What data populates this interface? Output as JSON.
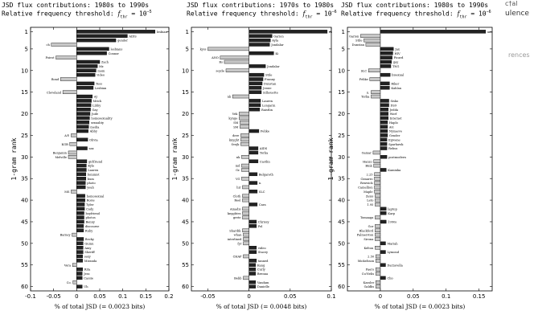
{
  "overlay": {
    "corner_text_1": "c†al",
    "corner_text_2": "ulence",
    "corner_text_3": "rences"
  },
  "chart_data": [
    {
      "type": "bar",
      "orientation": "horizontal",
      "title": "JSD flux contributions: 1980s to 1990s",
      "subtitle": "Relative frequency threshold: f_thr = 10^-5",
      "xlabel": "% of total JSD (= 0.0023 bits)",
      "ylabel": "1-gram rank",
      "xlim": [
        -0.1,
        0.2
      ],
      "ylim": [
        1,
        60
      ],
      "xticks": [
        "-0.1",
        "-0.05",
        "0",
        "0.05",
        "0.1",
        "0.15",
        "0.2"
      ],
      "xtick_values": [
        -0.1,
        -0.05,
        0,
        0.05,
        0.1,
        0.15,
        0.2
      ],
      "yticks": [
        "1",
        "5",
        "10",
        "15",
        "20",
        "25",
        "30",
        "35",
        "40",
        "45",
        "50",
        "55",
        "60"
      ],
      "bars": [
        {
          "rank": 1,
          "label": "lesbian",
          "value": 0.17
        },
        {
          "rank": 2,
          "label": "AIDS",
          "value": 0.11
        },
        {
          "rank": 3,
          "label": "gender",
          "value": 0.085
        },
        {
          "rank": 4,
          "label": "ch",
          "value": -0.055
        },
        {
          "rank": 5,
          "label": "lesbians",
          "value": 0.07
        },
        {
          "rank": 6,
          "label": "Connor",
          "value": 0.065
        },
        {
          "rank": 7,
          "label": "Poirot",
          "value": -0.045
        },
        {
          "rank": 8,
          "label": "Zach",
          "value": 0.05
        },
        {
          "rank": 9,
          "label": "Mr.",
          "value": 0.045
        },
        {
          "rank": 10,
          "label": "mom",
          "value": 0.042
        },
        {
          "rank": 11,
          "label": "video",
          "value": 0.04
        },
        {
          "rank": 12,
          "label": "Bond",
          "value": -0.035
        },
        {
          "rank": 13,
          "label": "Tess",
          "value": 0.038
        },
        {
          "rank": 14,
          "label": "Lesbian",
          "value": 0.036
        },
        {
          "rank": 15,
          "label": "Cleveland",
          "value": -0.03
        },
        {
          "rank": 16,
          "label": "AJ",
          "value": 0.034
        },
        {
          "rank": 17,
          "label": "Mitch",
          "value": 0.032
        },
        {
          "rank": 18,
          "label": "Libby",
          "value": 0.031
        },
        {
          "rank": 19,
          "label": "Gay",
          "value": 0.03
        },
        {
          "rank": 20,
          "label": "Jude",
          "value": 0.029
        },
        {
          "rank": 21,
          "label": "homosexuality",
          "value": 0.028
        },
        {
          "rank": 22,
          "label": "sexuality",
          "value": 0.027
        },
        {
          "rank": 23,
          "label": "media",
          "value": 0.026
        },
        {
          "rank": 24,
          "label": "Abby",
          "value": 0.025
        },
        {
          "rank": 25,
          "label": "A®",
          "value": -0.012
        },
        {
          "rank": 26,
          "label": "Olivia",
          "value": 0.024
        },
        {
          "rank": 27,
          "label": "KGB",
          "value": -0.015
        },
        {
          "rank": 28,
          "label": "sax",
          "value": 0.023
        },
        {
          "rank": 29,
          "label": "Benjamin",
          "value": -0.018
        },
        {
          "rank": 30,
          "label": "Melville",
          "value": -0.018
        },
        {
          "rank": 31,
          "label": "girlfriend",
          "value": 0.022
        },
        {
          "rank": 32,
          "label": "Kyle",
          "value": 0.021
        },
        {
          "rank": 33,
          "label": "Lauren",
          "value": 0.021
        },
        {
          "rank": 34,
          "label": "feminist",
          "value": 0.02
        },
        {
          "rank": 35,
          "label": "bum",
          "value": 0.02
        },
        {
          "rank": 36,
          "label": "photo",
          "value": 0.019
        },
        {
          "rank": 37,
          "label": "yeah",
          "value": 0.019
        },
        {
          "rank": 38,
          "label": "MS",
          "value": -0.012
        },
        {
          "rank": 39,
          "label": "homosexual",
          "value": 0.018
        },
        {
          "rank": 40,
          "label": "Rosie",
          "value": 0.018
        },
        {
          "rank": 41,
          "label": "Tyler",
          "value": 0.017
        },
        {
          "rank": 42,
          "label": "Cody",
          "value": 0.017
        },
        {
          "rank": 43,
          "label": "boyfriend",
          "value": 0.016
        },
        {
          "rank": 44,
          "label": "photos",
          "value": 0.016
        },
        {
          "rank": 45,
          "label": "Benny",
          "value": 0.016
        },
        {
          "rank": 46,
          "label": "discourse",
          "value": 0.015
        },
        {
          "rank": 47,
          "label": "Ruby",
          "value": 0.015
        },
        {
          "rank": 48,
          "label": "Barney",
          "value": -0.01
        },
        {
          "rank": 49,
          "label": "Becky",
          "value": 0.015
        },
        {
          "rank": 50,
          "label": "Quinn",
          "value": 0.014
        },
        {
          "rank": 51,
          "label": "Amy",
          "value": 0.014
        },
        {
          "rank": 52,
          "label": "Sheriff",
          "value": 0.014
        },
        {
          "rank": 53,
          "label": "sexy",
          "value": 0.013
        },
        {
          "rank": 54,
          "label": "Miranda",
          "value": 0.013
        },
        {
          "rank": 55,
          "label": "Vera",
          "value": -0.009
        },
        {
          "rank": 56,
          "label": "Rita",
          "value": 0.013
        },
        {
          "rank": 57,
          "label": "Jess",
          "value": 0.012
        },
        {
          "rank": 58,
          "label": "Cassie",
          "value": 0.012
        },
        {
          "rank": 59,
          "label": "Co.",
          "value": -0.008
        },
        {
          "rank": 60,
          "label": "Uh",
          "value": 0.012
        }
      ]
    },
    {
      "type": "bar",
      "orientation": "horizontal",
      "title": "JSD flux contributions: 1970s to 1980s",
      "subtitle": "Relative frequency threshold: f_thr = 10^-6",
      "xlabel": "% of total JSD (= 0.0048 bits)",
      "ylabel": "1-gram rank",
      "xlim": [
        -0.07,
        0.1
      ],
      "ylim": [
        1,
        60
      ],
      "xticks": [
        "-0.05",
        "0",
        "0.05",
        "0.1"
      ],
      "xtick_values": [
        -0.05,
        0,
        0.05,
        0.1
      ],
      "yticks": [
        "1",
        "5",
        "10",
        "15",
        "20",
        "25",
        "30",
        "35",
        "40",
        "45",
        "50",
        "55",
        "60"
      ],
      "bars": [
        {
          "rank": 1,
          "label": "rk",
          "value": 0.095
        },
        {
          "rank": 2,
          "label": "Garion",
          "value": 0.028
        },
        {
          "rank": 3,
          "label": "Ayla",
          "value": 0.026
        },
        {
          "rank": 4,
          "label": "Jondalar",
          "value": 0.025
        },
        {
          "rank": 5,
          "label": "kyss",
          "value": -0.05
        },
        {
          "rank": 6,
          "label": "Ki",
          "value": 0.03
        },
        {
          "rank": 7,
          "label": "ANO",
          "value": -0.035
        },
        {
          "rank": 8,
          "label": "Rs",
          "value": -0.03
        },
        {
          "rank": 9,
          "label": "Jondalar",
          "value": 0.02
        },
        {
          "rank": 10,
          "label": "seyde",
          "value": -0.028
        },
        {
          "rank": 11,
          "label": "Stile",
          "value": 0.018
        },
        {
          "rank": 12,
          "label": "Franny",
          "value": 0.017
        },
        {
          "rank": 13,
          "label": "Dunstan",
          "value": 0.016
        },
        {
          "rank": 14,
          "label": "Jessie",
          "value": 0.015
        },
        {
          "rank": 15,
          "label": "Silhouette",
          "value": 0.015
        },
        {
          "rank": 16,
          "label": "nk",
          "value": -0.02
        },
        {
          "rank": 17,
          "label": "Lauren",
          "value": 0.014
        },
        {
          "rank": 18,
          "label": "Longarm",
          "value": 0.014
        },
        {
          "rank": 19,
          "label": "Raistlin",
          "value": 0.013
        },
        {
          "rank": 20,
          "label": "Vek",
          "value": -0.012
        },
        {
          "rank": 21,
          "label": "kynge",
          "value": -0.012
        },
        {
          "rank": 22,
          "label": "SM",
          "value": -0.011
        },
        {
          "rank": 23,
          "label": "SM",
          "value": -0.011
        },
        {
          "rank": 24,
          "label": "Felike",
          "value": 0.012
        },
        {
          "rank": 25,
          "label": "dere",
          "value": -0.01
        },
        {
          "rank": 26,
          "label": "knyght",
          "value": -0.01
        },
        {
          "rank": 27,
          "label": "Svejk",
          "value": -0.01
        },
        {
          "rank": 28,
          "label": "AIDS",
          "value": 0.011
        },
        {
          "rank": 29,
          "label": "Torka",
          "value": 0.011
        },
        {
          "rank": 30,
          "label": "nk",
          "value": -0.009
        },
        {
          "rank": 31,
          "label": "Castlin",
          "value": 0.011
        },
        {
          "rank": 32,
          "label": "md",
          "value": -0.009
        },
        {
          "rank": 33,
          "label": "Gr.",
          "value": -0.009
        },
        {
          "rank": 34,
          "label": "Belgareth",
          "value": 0.01
        },
        {
          "rank": 35,
          "label": "VG",
          "value": -0.009
        },
        {
          "rank": 36,
          "label": "n.",
          "value": 0.01
        },
        {
          "rank": 37,
          "label": "hir",
          "value": -0.008
        },
        {
          "rank": 38,
          "label": "SLC",
          "value": 0.01
        },
        {
          "rank": 39,
          "label": "Cloth",
          "value": -0.008
        },
        {
          "rank": 40,
          "label": "Reel",
          "value": -0.008
        },
        {
          "rank": 41,
          "label": "Cara",
          "value": 0.01
        },
        {
          "rank": 42,
          "label": "Amadis",
          "value": -0.008
        },
        {
          "rank": 43,
          "label": "knyghtes",
          "value": -0.008
        },
        {
          "rank": 44,
          "label": "grete",
          "value": -0.008
        },
        {
          "rank": 45,
          "label": "Chrissy",
          "value": 0.009
        },
        {
          "rank": 46,
          "label": "Pol",
          "value": 0.009
        },
        {
          "rank": 47,
          "label": "Shardik",
          "value": -0.008
        },
        {
          "rank": 48,
          "label": "whan",
          "value": -0.007
        },
        {
          "rank": 49,
          "label": "interlined",
          "value": -0.007
        },
        {
          "rank": 50,
          "label": "fyr",
          "value": -0.007
        },
        {
          "rank": 51,
          "label": "video",
          "value": 0.009
        },
        {
          "rank": 52,
          "label": "Stacey",
          "value": 0.009
        },
        {
          "rank": 53,
          "label": "CHAP",
          "value": -0.007
        },
        {
          "rank": 54,
          "label": "tanned",
          "value": 0.009
        },
        {
          "rank": 55,
          "label": "Kang",
          "value": 0.008
        },
        {
          "rank": 56,
          "label": "Curly",
          "value": 0.008
        },
        {
          "rank": 57,
          "label": "Brenna",
          "value": 0.008
        },
        {
          "rank": 58,
          "label": "Bebb",
          "value": -0.007
        },
        {
          "rank": 59,
          "label": "Vandam",
          "value": 0.008
        },
        {
          "rank": 60,
          "label": "Danielle",
          "value": 0.008
        }
      ]
    },
    {
      "type": "bar",
      "orientation": "horizontal",
      "title": "JSD flux contributions: 1980s to 1990s",
      "subtitle": "Relative frequency threshold: f_thr = 10^-6",
      "xlabel": "% of total JSD (= 0.0023 bits)",
      "ylabel": "1-gram rank",
      "xlim": [
        -0.05,
        0.17
      ],
      "ylim": [
        1,
        60
      ],
      "xticks": [
        "0",
        "0.05",
        "0.1",
        "0.15"
      ],
      "xtick_values": [
        0,
        0.05,
        0.1,
        0.15
      ],
      "yticks": [
        "1",
        "5",
        "10",
        "15",
        "20",
        "25",
        "30",
        "35",
        "40",
        "45",
        "50",
        "55",
        "60"
      ],
      "bars": [
        {
          "rank": 1,
          "label": "unc",
          "value": 0.16
        },
        {
          "rank": 2,
          "label": "Garion",
          "value": -0.03
        },
        {
          "rank": 3,
          "label": "Stile",
          "value": -0.025
        },
        {
          "rank": 4,
          "label": "Dunstan",
          "value": -0.022
        },
        {
          "rank": 5,
          "label": "Jax",
          "value": 0.02
        },
        {
          "rank": 6,
          "label": "HIV",
          "value": 0.019
        },
        {
          "rank": 7,
          "label": "Picard",
          "value": 0.018
        },
        {
          "rank": 8,
          "label": "gay",
          "value": 0.017
        },
        {
          "rank": 9,
          "label": "TNG",
          "value": 0.016
        },
        {
          "rank": 10,
          "label": "SLC",
          "value": -0.018
        },
        {
          "rank": 11,
          "label": "bisexual",
          "value": 0.015
        },
        {
          "rank": 12,
          "label": "Felike",
          "value": -0.016
        },
        {
          "rank": 13,
          "label": "Riker",
          "value": 0.014
        },
        {
          "rank": 14,
          "label": "Kahlan",
          "value": 0.014
        },
        {
          "rank": 15,
          "label": "n.",
          "value": -0.014
        },
        {
          "rank": 16,
          "label": "Torka",
          "value": -0.014
        },
        {
          "rank": 17,
          "label": "Sisko",
          "value": 0.013
        },
        {
          "rank": 18,
          "label": "DS9",
          "value": 0.013
        },
        {
          "rank": 19,
          "label": "Jedda",
          "value": 0.012
        },
        {
          "rank": 20,
          "label": "Worf",
          "value": 0.012
        },
        {
          "rank": 21,
          "label": "Internet",
          "value": 0.012
        },
        {
          "rank": 22,
          "label": "Haplo",
          "value": 0.011
        },
        {
          "rank": 23,
          "label": "Avi",
          "value": 0.011
        },
        {
          "rank": 24,
          "label": "Nynaeve",
          "value": 0.011
        },
        {
          "rank": 25,
          "label": "Gender",
          "value": 0.011
        },
        {
          "rank": 26,
          "label": "Egwene",
          "value": 0.01
        },
        {
          "rank": 27,
          "label": "Sparhawk",
          "value": 0.01
        },
        {
          "rank": 28,
          "label": "Rebus",
          "value": 0.01
        },
        {
          "rank": 29,
          "label": "Gamar",
          "value": -0.011
        },
        {
          "rank": 30,
          "label": "postmodern",
          "value": 0.01
        },
        {
          "rank": 31,
          "label": "Hanzo",
          "value": -0.01
        },
        {
          "rank": 32,
          "label": "Bink",
          "value": -0.01
        },
        {
          "rank": 33,
          "label": "Kaminka",
          "value": 0.009
        },
        {
          "rank": 34,
          "label": "2.25",
          "value": -0.009
        },
        {
          "rank": 35,
          "label": "Cimarro",
          "value": -0.009
        },
        {
          "rank": 36,
          "label": "Renwick",
          "value": -0.009
        },
        {
          "rank": 37,
          "label": "Camellion",
          "value": -0.009
        },
        {
          "rank": 38,
          "label": "Maple",
          "value": -0.009
        },
        {
          "rank": 39,
          "label": "Zeiss",
          "value": -0.008
        },
        {
          "rank": 40,
          "label": "Leto",
          "value": -0.008
        },
        {
          "rank": 41,
          "label": "1.95",
          "value": -0.008
        },
        {
          "rank": 42,
          "label": "laptop",
          "value": 0.009
        },
        {
          "rank": 43,
          "label": "Karp",
          "value": 0.009
        },
        {
          "rank": 44,
          "label": "Tomaaga",
          "value": -0.008
        },
        {
          "rank": 45,
          "label": "1990s",
          "value": 0.009
        },
        {
          "rank": 46,
          "label": "Gor",
          "value": -0.008
        },
        {
          "rank": 47,
          "label": "Blackford",
          "value": -0.008
        },
        {
          "rank": 48,
          "label": "Palmerston",
          "value": -0.008
        },
        {
          "rank": 49,
          "label": "Sirona",
          "value": -0.008
        },
        {
          "rank": 50,
          "label": "Mariah",
          "value": 0.008
        },
        {
          "rank": 51,
          "label": "Kelton",
          "value": -0.008
        },
        {
          "rank": 52,
          "label": "Lymond",
          "value": 0.008
        },
        {
          "rank": 53,
          "label": "2.50",
          "value": -0.007
        },
        {
          "rank": 54,
          "label": "Mickelsson",
          "value": -0.007
        },
        {
          "rank": 55,
          "label": "Darzavella",
          "value": 0.008
        },
        {
          "rank": 56,
          "label": "Faero",
          "value": -0.007
        },
        {
          "rank": 57,
          "label": "Cu'Nelis",
          "value": -0.007
        },
        {
          "rank": 58,
          "label": "Clio",
          "value": 0.008
        },
        {
          "rank": 59,
          "label": "Kassler",
          "value": -0.007
        },
        {
          "rank": 60,
          "label": "Galdbs",
          "value": -0.007
        }
      ]
    }
  ]
}
